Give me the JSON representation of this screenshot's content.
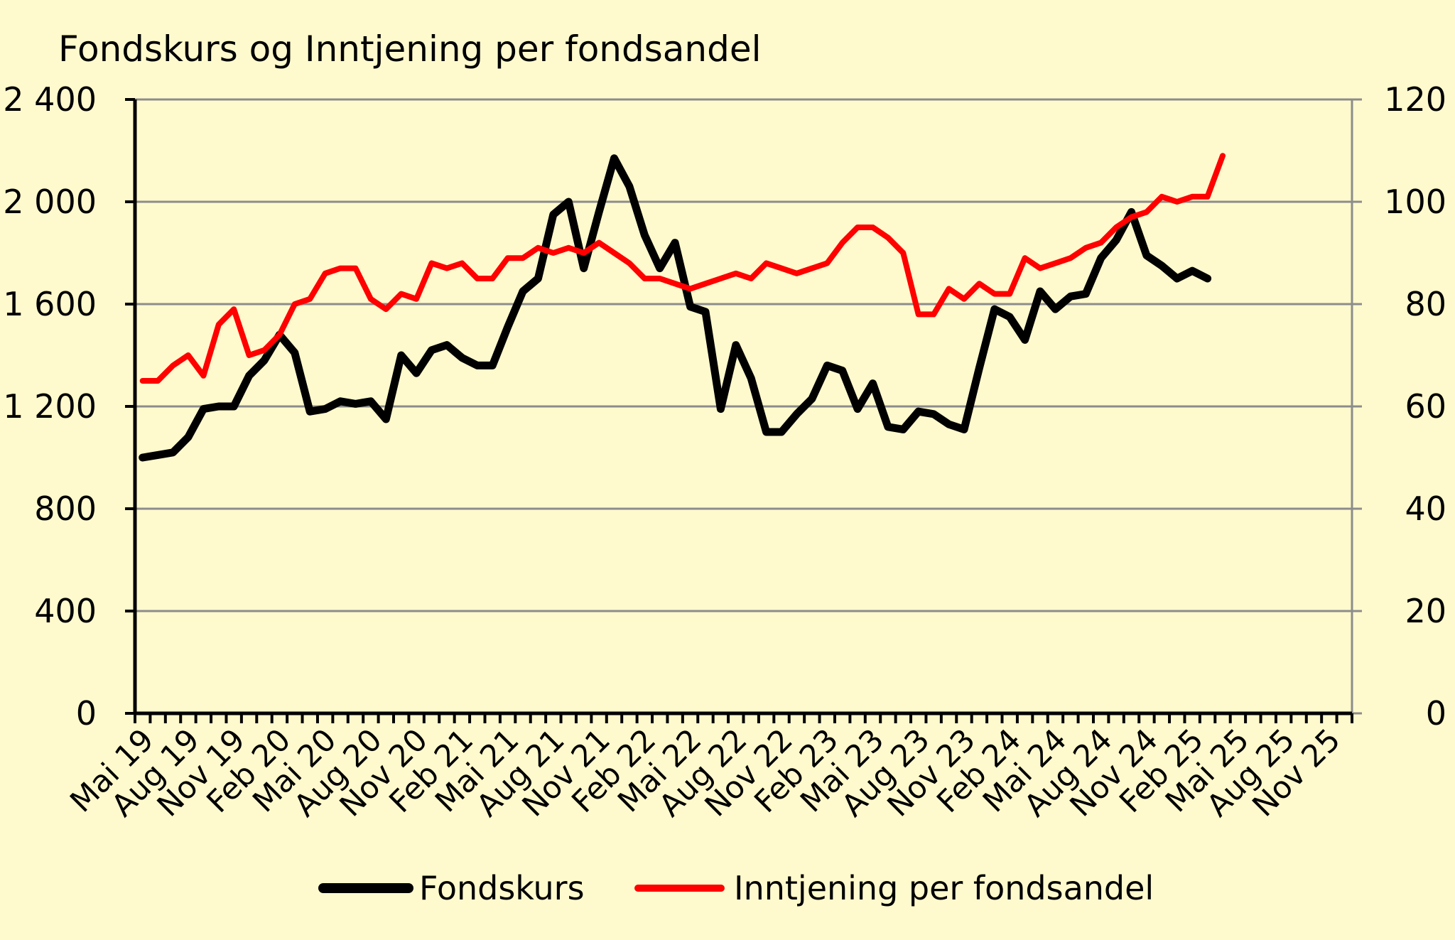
{
  "chart_data": {
    "type": "line",
    "title": "Fondskurs og Inntjening per fondsandel",
    "xlabel": "",
    "ylabel": "",
    "y_left": {
      "ticks": [
        "0",
        "400",
        "800",
        "1 200",
        "1 600",
        "2 000",
        "2 400"
      ],
      "range": [
        0,
        2400
      ]
    },
    "y_right": {
      "ticks": [
        "0",
        "20",
        "40",
        "60",
        "80",
        "100",
        "120"
      ],
      "range": [
        0,
        120
      ]
    },
    "x_tick_labels": [
      "Mai 19",
      "Aug 19",
      "Nov 19",
      "Feb 20",
      "Mai 20",
      "Aug 20",
      "Nov 20",
      "Feb 21",
      "Mai 21",
      "Aug 21",
      "Nov 21",
      "Feb 22",
      "Mai 22",
      "Aug 22",
      "Nov 22",
      "Feb 23",
      "Mai 23",
      "Aug 23",
      "Nov 23",
      "Feb 24",
      "Mai 24",
      "Aug 24",
      "Nov 24",
      "Feb 25",
      "Mai 25",
      "Aug 25",
      "Nov 25"
    ],
    "x_month_count": 80,
    "grid": true,
    "legend_position": "bottom",
    "series": [
      {
        "name": "Fondskurs",
        "axis": "left",
        "color": "#000000",
        "values": [
          1000,
          1010,
          1020,
          1080,
          1190,
          1200,
          1200,
          1320,
          1380,
          1480,
          1410,
          1180,
          1190,
          1220,
          1210,
          1220,
          1150,
          1400,
          1330,
          1420,
          1440,
          1390,
          1360,
          1360,
          1510,
          1650,
          1700,
          1950,
          2000,
          1740,
          1960,
          2170,
          2060,
          1870,
          1740,
          1840,
          1590,
          1570,
          1190,
          1440,
          1310,
          1100,
          1100,
          1170,
          1230,
          1360,
          1340,
          1190,
          1290,
          1120,
          1110,
          1180,
          1170,
          1130,
          1110,
          1350,
          1580,
          1550,
          1460,
          1650,
          1580,
          1630,
          1640,
          1780,
          1850,
          1960,
          1790,
          1750,
          1700,
          1730,
          1700
        ]
      },
      {
        "name": "Inntjening per fondsandel",
        "axis": "right",
        "color": "#FF0000",
        "values": [
          65,
          65,
          68,
          70,
          66,
          76,
          79,
          70,
          71,
          74,
          80,
          81,
          86,
          87,
          87,
          81,
          79,
          82,
          81,
          88,
          87,
          88,
          85,
          85,
          89,
          89,
          91,
          90,
          91,
          90,
          92,
          90,
          88,
          85,
          85,
          84,
          83,
          84,
          85,
          86,
          85,
          88,
          87,
          86,
          87,
          88,
          92,
          95,
          95,
          93,
          90,
          78,
          78,
          83,
          81,
          84,
          82,
          82,
          89,
          87,
          88,
          89,
          91,
          92,
          95,
          97,
          98,
          101,
          100,
          101,
          101,
          109
        ]
      }
    ]
  }
}
